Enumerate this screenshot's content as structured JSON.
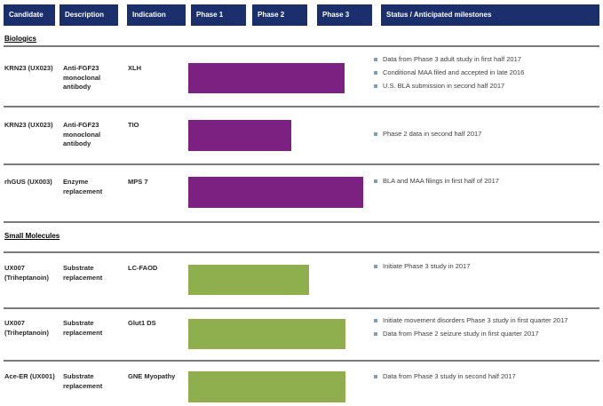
{
  "colors": {
    "header_bg": "#1a2f6b",
    "header_text": "#ffffff",
    "biologics_bar": "#7c2082",
    "small_molecules_bar": "#8fae4d",
    "bullet_square": "#7f9db9",
    "separator_line": "#7a7a7a",
    "cell_text": "#262626",
    "status_text": "#3d3d3d"
  },
  "header": {
    "columns": [
      "Candidate",
      "Description",
      "Indication",
      "Phase 1",
      "Phase 2",
      "Phase 3",
      "Status / Anticipated milestones"
    ]
  },
  "sections": [
    {
      "label": "Biologics",
      "bar_color": "#7c2082",
      "rows": [
        {
          "candidate": "KRN23 (UX023)",
          "description": "Anti-FGF23 monoclonal antibody",
          "indication": "XLH",
          "bar": {
            "start_phase": "Phase 1",
            "end_phase": "mid Phase 3",
            "phase_extent": 2.5,
            "color": "#7c2082"
          },
          "bar_css": "left:212px;top:71px;width:176px;height:34px;background:#7c2082",
          "milestones": [
            "Data from Phase 3 adult study in first half 2017",
            "Conditional MAA filed and accepted in late 2016",
            "U.S. BLA submission in second half 2017"
          ]
        },
        {
          "candidate": "KRN23 (UX023)",
          "description": "Anti-FGF23 monoclonal antibody",
          "indication": "TIO",
          "bar": {
            "start_phase": "Phase 1",
            "end_phase": "mid Phase 2",
            "phase_extent": 1.75,
            "color": "#7c2082"
          },
          "bar_css": "left:212px;top:135px;width:116px;height:35px;background:#7c2082",
          "milestones": [
            "Phase 2 data in second half 2017"
          ]
        },
        {
          "candidate": "rhGUS (UX003)",
          "description": "Enzyme replacement",
          "indication": "MPS 7",
          "bar": {
            "start_phase": "Phase 1",
            "end_phase": "late Phase 3",
            "phase_extent": 2.85,
            "color": "#7c2082"
          },
          "bar_css": "left:212px;top:199px;width:197px;height:35px;background:#7c2082",
          "milestones": [
            "BLA and MAA filings in first half of 2017"
          ]
        }
      ]
    },
    {
      "label": "Small Molecules",
      "bar_color": "#8fae4d",
      "rows": [
        {
          "candidate": "UX007 (Triheptanoin)",
          "description": "Substrate replacement",
          "indication": "LC-FAOD",
          "bar": {
            "start_phase": "Phase 1",
            "end_phase": "end Phase 2",
            "phase_extent": 2.05,
            "color": "#8fae4d"
          },
          "bar_css": "left:212px;top:298px;width:136px;height:34px;background:#8fae4d",
          "milestones": [
            "Initiate Phase 3 study in 2017"
          ]
        },
        {
          "candidate": "UX007 (Triheptanoin)",
          "description": "Substrate replacement",
          "indication": "Glut1 DS",
          "bar": {
            "start_phase": "Phase 1",
            "end_phase": "mid Phase 3",
            "phase_extent": 2.5,
            "color": "#8fae4d"
          },
          "bar_css": "left:212px;top:359px;width:177px;height:34px;background:#8fae4d",
          "milestones": [
            "Initiate movement disorders Phase 3 study in first quarter 2017",
            "Data from Phase 2 seizure study in first quarter 2017"
          ]
        },
        {
          "candidate": "Ace-ER (UX001)",
          "description": "Substrate replacement",
          "indication": "GNE Myopathy",
          "bar": {
            "start_phase": "Phase 1",
            "end_phase": "mid Phase 3",
            "phase_extent": 2.5,
            "color": "#8fae4d"
          },
          "bar_css": "left:212px;top:418px;width:177px;height:35px;background:#8fae4d",
          "milestones": [
            "Data from Phase 3 study in second half 2017"
          ]
        }
      ]
    }
  ],
  "chart_data": {
    "type": "bar",
    "subtype": "gantt-pipeline",
    "phase_axis": [
      "Phase 1",
      "Phase 2",
      "Phase 3"
    ],
    "bars": [
      {
        "group": "Biologics",
        "candidate": "KRN23 (UX023)",
        "indication": "XLH",
        "phase_extent": 2.5,
        "color": "#7c2082"
      },
      {
        "group": "Biologics",
        "candidate": "KRN23 (UX023)",
        "indication": "TIO",
        "phase_extent": 1.75,
        "color": "#7c2082"
      },
      {
        "group": "Biologics",
        "candidate": "rhGUS (UX003)",
        "indication": "MPS 7",
        "phase_extent": 2.85,
        "color": "#7c2082"
      },
      {
        "group": "Small Molecules",
        "candidate": "UX007 (Triheptanoin)",
        "indication": "LC-FAOD",
        "phase_extent": 2.05,
        "color": "#8fae4d"
      },
      {
        "group": "Small Molecules",
        "candidate": "UX007 (Triheptanoin)",
        "indication": "Glut1 DS",
        "phase_extent": 2.5,
        "color": "#8fae4d"
      },
      {
        "group": "Small Molecules",
        "candidate": "Ace-ER (UX001)",
        "indication": "GNE Myopathy",
        "phase_extent": 2.5,
        "color": "#8fae4d"
      }
    ]
  }
}
